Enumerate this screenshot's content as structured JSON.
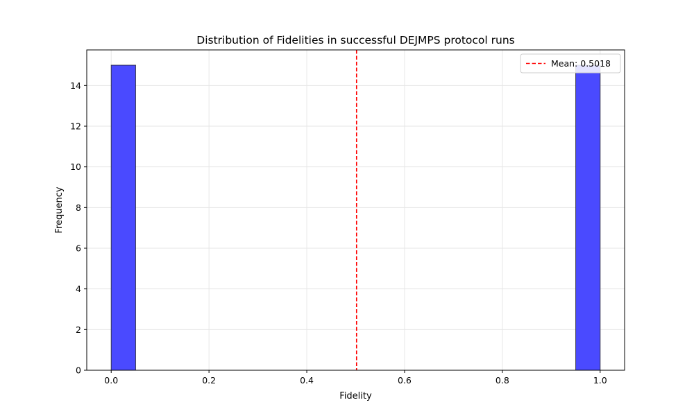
{
  "chart_data": {
    "type": "bar",
    "title": "Distribution of Fidelities in successful DEJMPS protocol runs",
    "xlabel": "Fidelity",
    "ylabel": "Frequency",
    "xlim": [
      -0.05,
      1.05
    ],
    "ylim": [
      0,
      15.75
    ],
    "x_ticks": [
      0.0,
      0.2,
      0.4,
      0.6,
      0.8,
      1.0
    ],
    "x_tick_labels": [
      "0.0",
      "0.2",
      "0.4",
      "0.6",
      "0.8",
      "1.0"
    ],
    "y_ticks": [
      0,
      2,
      4,
      6,
      8,
      10,
      12,
      14
    ],
    "y_tick_labels": [
      "0",
      "2",
      "4",
      "6",
      "8",
      "10",
      "12",
      "14"
    ],
    "grid": true,
    "bins": [
      {
        "start": 0.0,
        "end": 0.05,
        "count": 15
      },
      {
        "start": 0.95,
        "end": 1.0,
        "count": 15
      }
    ],
    "bar_color": "#4a4aff",
    "bar_edge_color": "#222222",
    "mean_line": {
      "x": 0.5018,
      "label": "Mean: 0.5018",
      "color": "#ff0000"
    },
    "legend": {
      "placement": "top-right"
    }
  }
}
